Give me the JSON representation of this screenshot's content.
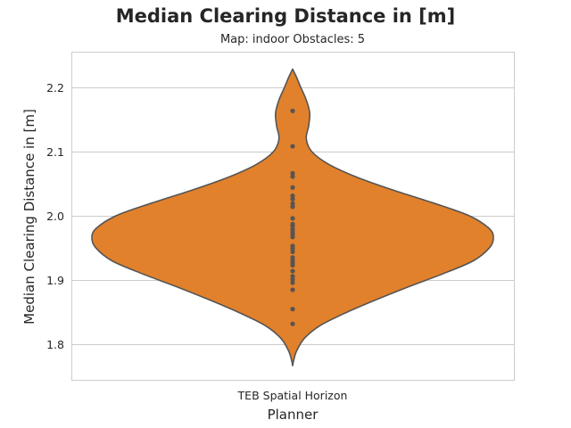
{
  "chart_data": {
    "type": "violin",
    "title": "Median Clearing Distance in [m]",
    "subtitle": "Map: indoor Obstacles: 5",
    "xlabel": "Planner",
    "ylabel": "Median Clearing Distance in [m]",
    "categories": [
      "TEB Spatial Horizon"
    ],
    "ylim": [
      1.745,
      2.255
    ],
    "yticks": [
      1.8,
      1.9,
      2.0,
      2.1,
      2.2
    ],
    "ytick_labels": [
      "1.8",
      "1.9",
      "2.0",
      "2.1",
      "2.2"
    ],
    "grid": true,
    "fill_color": "#e1812c",
    "edge_color": "#555555",
    "point_color": "#555555",
    "violin": {
      "y_min": 1.767,
      "y_max": 2.228,
      "profile": [
        [
          1.767,
          0.0
        ],
        [
          1.775,
          0.005
        ],
        [
          1.79,
          0.02
        ],
        [
          1.81,
          0.06
        ],
        [
          1.83,
          0.14
        ],
        [
          1.85,
          0.27
        ],
        [
          1.87,
          0.42
        ],
        [
          1.89,
          0.58
        ],
        [
          1.91,
          0.75
        ],
        [
          1.93,
          0.9
        ],
        [
          1.95,
          0.98
        ],
        [
          1.965,
          1.0
        ],
        [
          1.98,
          0.98
        ],
        [
          2.0,
          0.88
        ],
        [
          2.02,
          0.7
        ],
        [
          2.04,
          0.5
        ],
        [
          2.06,
          0.32
        ],
        [
          2.08,
          0.18
        ],
        [
          2.1,
          0.095
        ],
        [
          2.12,
          0.068
        ],
        [
          2.14,
          0.08
        ],
        [
          2.16,
          0.085
        ],
        [
          2.18,
          0.068
        ],
        [
          2.2,
          0.04
        ],
        [
          2.215,
          0.02
        ],
        [
          2.228,
          0.0
        ]
      ]
    },
    "points": [
      2.163,
      2.108,
      2.066,
      2.061,
      2.044,
      2.031,
      2.026,
      2.019,
      2.014,
      1.996,
      1.987,
      1.984,
      1.979,
      1.975,
      1.971,
      1.967,
      1.953,
      1.949,
      1.944,
      1.935,
      1.931,
      1.927,
      1.923,
      1.914,
      1.906,
      1.901,
      1.896,
      1.885,
      1.855,
      1.832
    ]
  }
}
